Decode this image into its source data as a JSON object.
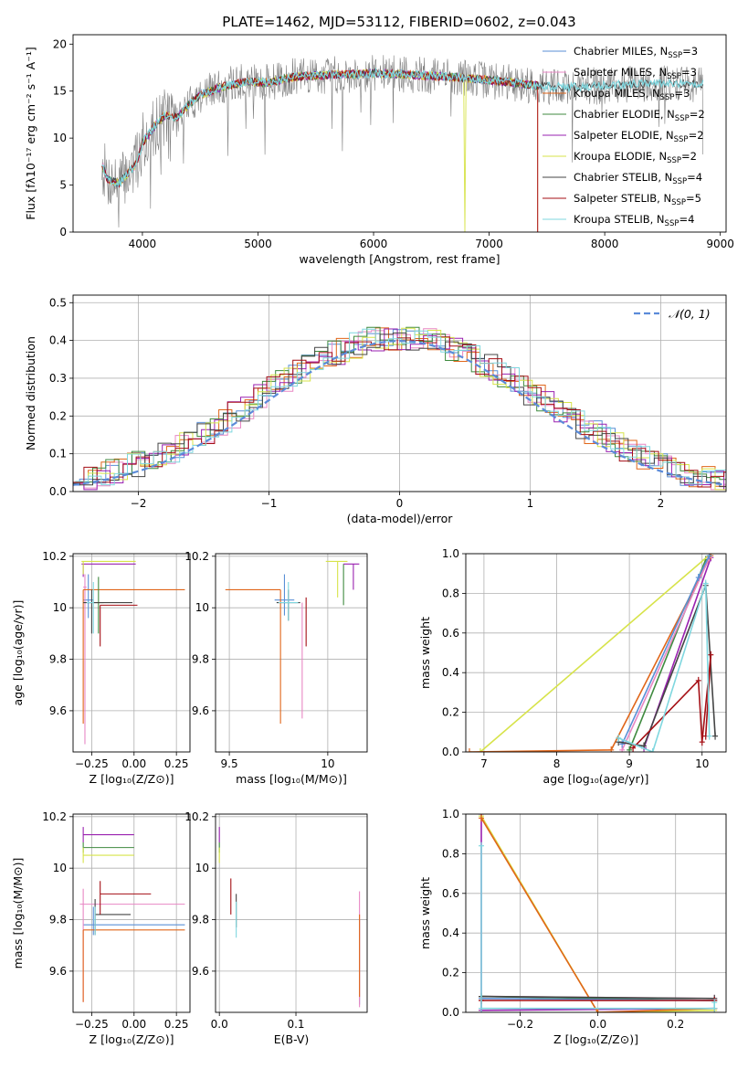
{
  "title": "PLATE=1462, MJD=53112, FIBERID=0602, z=0.043",
  "colors": {
    "chabrier_miles": "#5a8fd6",
    "salpeter_miles": "#e887c4",
    "kroupa_miles": "#e0661a",
    "chabrier_elodie": "#3f8a3f",
    "salpeter_elodie": "#9a21b0",
    "kroupa_elodie": "#d7e34a",
    "chabrier_stelib": "#444444",
    "salpeter_stelib": "#a50f15",
    "kroupa_stelib": "#7fd7df",
    "data": "#7f7f7f",
    "normal": "#5b8bd9",
    "grid": "#b0b0b0"
  },
  "legend": [
    {
      "label": "Chabrier MILES, N",
      "sub": "SSP",
      "tail": "=3",
      "key": "chabrier_miles"
    },
    {
      "label": "Salpeter MILES, N",
      "sub": "SSP",
      "tail": "=3",
      "key": "salpeter_miles"
    },
    {
      "label": "Kroupa MILES, N",
      "sub": "SSP",
      "tail": "=3",
      "key": "kroupa_miles"
    },
    {
      "label": "Chabrier ELODIE, N",
      "sub": "SSP",
      "tail": "=2",
      "key": "chabrier_elodie"
    },
    {
      "label": "Salpeter ELODIE, N",
      "sub": "SSP",
      "tail": "=2",
      "key": "salpeter_elodie"
    },
    {
      "label": "Kroupa ELODIE, N",
      "sub": "SSP",
      "tail": "=2",
      "key": "kroupa_elodie"
    },
    {
      "label": "Chabrier STELIB, N",
      "sub": "SSP",
      "tail": "=4",
      "key": "chabrier_stelib"
    },
    {
      "label": "Salpeter STELIB, N",
      "sub": "SSP",
      "tail": "=5",
      "key": "salpeter_stelib"
    },
    {
      "label": "Kroupa STELIB, N",
      "sub": "SSP",
      "tail": "=4",
      "key": "kroupa_stelib"
    }
  ],
  "chart_data": [
    {
      "id": "spectrum",
      "type": "line",
      "xlabel": "wavelength [Angstrom, rest frame]",
      "ylabel": "Flux [fλ10⁻¹⁷ erg cm⁻² s⁻¹ A⁻¹]",
      "xlim": [
        3400,
        9050
      ],
      "ylim": [
        0,
        21
      ],
      "xticks": [
        4000,
        5000,
        6000,
        7000,
        8000,
        9000
      ],
      "yticks": [
        0,
        5,
        10,
        15,
        20
      ],
      "data_range": [
        3650,
        8850
      ],
      "shape": [
        [
          3650,
          7.2
        ],
        [
          3700,
          5.6
        ],
        [
          3800,
          5.2
        ],
        [
          3900,
          6.6
        ],
        [
          3950,
          7.3
        ],
        [
          4000,
          9.5
        ],
        [
          4100,
          11.2
        ],
        [
          4200,
          12.5
        ],
        [
          4300,
          12.2
        ],
        [
          4400,
          13.5
        ],
        [
          4500,
          14.6
        ],
        [
          4700,
          15.5
        ],
        [
          4900,
          16.0
        ],
        [
          5100,
          15.9
        ],
        [
          5300,
          16.5
        ],
        [
          5600,
          16.7
        ],
        [
          6000,
          16.9
        ],
        [
          6400,
          16.7
        ],
        [
          6800,
          16.4
        ],
        [
          7200,
          15.9
        ],
        [
          7400,
          15.6
        ],
        [
          7700,
          15.4
        ],
        [
          8000,
          15.6
        ],
        [
          8400,
          15.8
        ],
        [
          8850,
          15.8
        ]
      ],
      "dips": [
        {
          "x": 6790,
          "y": 0.0
        },
        {
          "x": 7420,
          "y": 0.0
        }
      ]
    },
    {
      "id": "residuals",
      "type": "step",
      "xlabel": "(data-model)/error",
      "ylabel": "Normed distribution",
      "xlim": [
        -2.5,
        2.5
      ],
      "ylim": [
        0,
        0.52
      ],
      "xticks": [
        -2,
        -1,
        0,
        1,
        2
      ],
      "ytick_labels": [
        "0.0",
        "0.1",
        "0.2",
        "0.3",
        "0.4",
        "0.5"
      ],
      "yticks": [
        0,
        0.1,
        0.2,
        0.3,
        0.4,
        0.5
      ],
      "bin_width": 0.1,
      "normal_label": "𝒩(0, 1)"
    },
    {
      "id": "age_vs_Z",
      "type": "errorbar",
      "xlabel": "Z [log₁₀(Z/Z⊙)]",
      "ylabel": "age  [log₁₀(age/yr)]",
      "xlim": [
        -0.36,
        0.33
      ],
      "ylim": [
        9.44,
        10.21
      ],
      "xticks": [
        -0.25,
        0.0,
        0.25
      ],
      "xtick_labels": [
        "−0.25",
        "0.00",
        "0.25"
      ],
      "yticks": [
        9.6,
        9.8,
        10.0,
        10.2
      ],
      "points": [
        {
          "key": "chabrier_miles",
          "x": -0.27,
          "xerr": [
            0.03,
            0.03
          ],
          "y": 10.03,
          "yerr": [
            0.07,
            0.1
          ]
        },
        {
          "key": "salpeter_miles",
          "x": -0.29,
          "xerr": [
            0.01,
            0.01
          ],
          "y": 10.08,
          "yerr": [
            0.61,
            0.05
          ]
        },
        {
          "key": "kroupa_miles",
          "x": -0.3,
          "xerr": [
            0.0,
            0.6
          ],
          "y": 10.07,
          "yerr": [
            0.52,
            0.0
          ]
        },
        {
          "key": "chabrier_elodie",
          "x": -0.21,
          "xerr": [
            0.03,
            0.03
          ],
          "y": 10.02,
          "yerr": [
            0.12,
            0.1
          ]
        },
        {
          "key": "salpeter_elodie",
          "x": -0.3,
          "xerr": [
            0.01,
            0.31
          ],
          "y": 10.17,
          "yerr": [
            0.05,
            0.0
          ]
        },
        {
          "key": "kroupa_elodie",
          "x": -0.3,
          "xerr": [
            0.01,
            0.31
          ],
          "y": 10.18,
          "yerr": [
            0.05,
            0.0
          ]
        },
        {
          "key": "chabrier_stelib",
          "x": -0.25,
          "xerr": [
            0.05,
            0.24
          ],
          "y": 10.02,
          "yerr": [
            0.12,
            0.05
          ]
        },
        {
          "key": "salpeter_stelib",
          "x": -0.2,
          "xerr": [
            0.0,
            0.22
          ],
          "y": 10.01,
          "yerr": [
            0.16,
            0.0
          ]
        },
        {
          "key": "kroupa_stelib",
          "x": -0.24,
          "xerr": [
            0.04,
            0.0
          ],
          "y": 10.02,
          "yerr": [
            0.12,
            0.08
          ]
        }
      ]
    },
    {
      "id": "age_vs_mass",
      "type": "errorbar",
      "xlabel": "mass [log₁₀(M/M⊙)]",
      "ylabel": "",
      "xlim": [
        9.43,
        10.2
      ],
      "ylim": [
        9.44,
        10.21
      ],
      "xticks": [
        9.5,
        10.0
      ],
      "yticks": [
        9.6,
        9.8,
        10.0,
        10.2
      ],
      "points": [
        {
          "key": "chabrier_miles",
          "x": 9.78,
          "xerr": [
            0.05,
            0.05
          ],
          "y": 10.03,
          "yerr": [
            0.06,
            0.1
          ]
        },
        {
          "key": "salpeter_miles",
          "x": 9.87,
          "xerr": [
            0.0,
            0.0
          ],
          "y": 9.95,
          "yerr": [
            0.38,
            0.07
          ]
        },
        {
          "key": "kroupa_miles",
          "x": 9.76,
          "xerr": [
            0.28,
            0.0
          ],
          "y": 10.07,
          "yerr": [
            0.52,
            0.0
          ]
        },
        {
          "key": "chabrier_elodie",
          "x": 10.08,
          "xerr": [
            0.0,
            0.0
          ],
          "y": 10.13,
          "yerr": [
            0.12,
            0.04
          ]
        },
        {
          "key": "salpeter_elodie",
          "x": 10.13,
          "xerr": [
            0.05,
            0.03
          ],
          "y": 10.17,
          "yerr": [
            0.1,
            0.0
          ]
        },
        {
          "key": "kroupa_elodie",
          "x": 10.05,
          "xerr": [
            0.06,
            0.05
          ],
          "y": 10.18,
          "yerr": [
            0.14,
            0.0
          ]
        },
        {
          "key": "chabrier_stelib",
          "x": 9.8,
          "xerr": [
            0.06,
            0.06
          ],
          "y": 10.02,
          "yerr": [
            0.07,
            0.05
          ]
        },
        {
          "key": "salpeter_stelib",
          "x": 9.89,
          "xerr": [
            0.0,
            0.0
          ],
          "y": 10.0,
          "yerr": [
            0.15,
            0.04
          ]
        },
        {
          "key": "kroupa_stelib",
          "x": 9.8,
          "xerr": [
            0.05,
            0.05
          ],
          "y": 10.02,
          "yerr": [
            0.07,
            0.08
          ]
        }
      ]
    },
    {
      "id": "weight_vs_age",
      "type": "line",
      "xlabel": "age  [log₁₀(age/yr)]",
      "ylabel": "mass weight",
      "xlim": [
        6.75,
        10.33
      ],
      "ylim": [
        0,
        1
      ],
      "xticks": [
        7,
        8,
        9,
        10
      ],
      "yticks": [
        0,
        0.2,
        0.4,
        0.6,
        0.8,
        1.0
      ],
      "ytick_labels": [
        "0.0",
        "0.2",
        "0.4",
        "0.6",
        "0.8",
        "1.0"
      ],
      "series": [
        {
          "key": "salpeter_elodie",
          "x": [
            9.2,
            10.12
          ],
          "y": [
            0.02,
            0.98
          ]
        },
        {
          "key": "chabrier_elodie",
          "x": [
            9.0,
            10.05
          ],
          "y": [
            0.01,
            0.97
          ]
        },
        {
          "key": "kroupa_elodie",
          "x": [
            6.95,
            10.12
          ],
          "y": [
            0.0,
            1.0
          ]
        },
        {
          "key": "kroupa_miles",
          "x": [
            6.8,
            8.75,
            10.12
          ],
          "y": [
            0.0,
            0.01,
            0.99
          ]
        },
        {
          "key": "salpeter_miles",
          "x": [
            8.9,
            10.1
          ],
          "y": [
            0.01,
            0.98
          ]
        },
        {
          "key": "chabrier_miles",
          "x": [
            8.9,
            9.95,
            10.1
          ],
          "y": [
            0.04,
            0.88,
            0.99
          ]
        },
        {
          "key": "chabrier_stelib",
          "x": [
            8.85,
            9.2,
            10.05,
            10.18
          ],
          "y": [
            0.05,
            0.03,
            0.84,
            0.08
          ]
        },
        {
          "key": "salpeter_stelib",
          "x": [
            9.05,
            9.95,
            10.0,
            10.12,
            10.05
          ],
          "y": [
            0.02,
            0.36,
            0.05,
            0.49,
            0.08
          ]
        },
        {
          "key": "kroupa_stelib",
          "x": [
            8.85,
            9.32,
            10.05,
            10.1
          ],
          "y": [
            0.07,
            0.0,
            0.85,
            0.08
          ]
        }
      ]
    },
    {
      "id": "mass_vs_Z",
      "type": "errorbar",
      "xlabel": "Z [log₁₀(Z/Z⊙)]",
      "ylabel": "mass [log₁₀(M/M⊙)]",
      "xlim": [
        -0.36,
        0.33
      ],
      "ylim": [
        9.44,
        10.21
      ],
      "xticks": [
        -0.25,
        0.0,
        0.25
      ],
      "xtick_labels": [
        "−0.25",
        "0.00",
        "0.25"
      ],
      "yticks": [
        9.6,
        9.8,
        10.0,
        10.2
      ],
      "points": [
        {
          "key": "chabrier_miles",
          "x": -0.24,
          "xerr": [
            0.06,
            0.54
          ],
          "y": 9.78,
          "yerr": [
            0.04,
            0.07
          ]
        },
        {
          "key": "salpeter_miles",
          "x": -0.3,
          "xerr": [
            0.02,
            0.6
          ],
          "y": 9.86,
          "yerr": [
            0.38,
            0.06
          ]
        },
        {
          "key": "kroupa_miles",
          "x": -0.3,
          "xerr": [
            0.0,
            0.6
          ],
          "y": 9.76,
          "yerr": [
            0.28,
            0.0
          ]
        },
        {
          "key": "chabrier_elodie",
          "x": -0.3,
          "xerr": [
            0.0,
            0.3
          ],
          "y": 10.08,
          "yerr": [
            0.02,
            0.02
          ]
        },
        {
          "key": "salpeter_elodie",
          "x": -0.3,
          "xerr": [
            0.0,
            0.3
          ],
          "y": 10.13,
          "yerr": [
            0.03,
            0.03
          ]
        },
        {
          "key": "kroupa_elodie",
          "x": -0.3,
          "xerr": [
            0.0,
            0.3
          ],
          "y": 10.05,
          "yerr": [
            0.03,
            0.03
          ]
        },
        {
          "key": "chabrier_stelib",
          "x": -0.23,
          "xerr": [
            0.0,
            0.21
          ],
          "y": 9.82,
          "yerr": [
            0.08,
            0.06
          ]
        },
        {
          "key": "salpeter_stelib",
          "x": -0.2,
          "xerr": [
            0.0,
            0.3
          ],
          "y": 9.9,
          "yerr": [
            0.08,
            0.05
          ]
        },
        {
          "key": "kroupa_stelib",
          "x": -0.23,
          "xerr": [
            0.01,
            0.0
          ],
          "y": 9.8,
          "yerr": [
            0.06,
            0.05
          ]
        }
      ]
    },
    {
      "id": "mass_vs_ebv",
      "type": "errorbar",
      "xlabel": "E(B-V)",
      "ylabel": "",
      "xlim": [
        -0.005,
        0.193
      ],
      "ylim": [
        9.44,
        10.21
      ],
      "xticks": [
        0.0,
        0.1
      ],
      "xtick_labels": [
        "0.0",
        "0.1"
      ],
      "yticks": [
        9.6,
        9.8,
        10.0,
        10.2
      ],
      "points": [
        {
          "key": "chabrier_miles",
          "x": 0.183,
          "xerr": [
            0,
            0
          ],
          "y": 9.7,
          "yerr": [
            0.23,
            0.1
          ]
        },
        {
          "key": "salpeter_miles",
          "x": 0.183,
          "xerr": [
            0,
            0
          ],
          "y": 9.86,
          "yerr": [
            0.4,
            0.05
          ]
        },
        {
          "key": "kroupa_miles",
          "x": 0.183,
          "xerr": [
            0,
            0
          ],
          "y": 9.76,
          "yerr": [
            0.26,
            0.06
          ]
        },
        {
          "key": "chabrier_elodie",
          "x": 0.0,
          "xerr": [
            0,
            0
          ],
          "y": 10.08,
          "yerr": [
            0.02,
            0.02
          ]
        },
        {
          "key": "salpeter_elodie",
          "x": 0.0,
          "xerr": [
            0,
            0
          ],
          "y": 10.13,
          "yerr": [
            0.03,
            0.03
          ]
        },
        {
          "key": "kroupa_elodie",
          "x": 0.0,
          "xerr": [
            0,
            0
          ],
          "y": 10.05,
          "yerr": [
            0.03,
            0.03
          ]
        },
        {
          "key": "chabrier_stelib",
          "x": 0.022,
          "xerr": [
            0,
            0
          ],
          "y": 9.82,
          "yerr": [
            0.05,
            0.08
          ]
        },
        {
          "key": "salpeter_stelib",
          "x": 0.015,
          "xerr": [
            0,
            0
          ],
          "y": 9.88,
          "yerr": [
            0.06,
            0.08
          ]
        },
        {
          "key": "kroupa_stelib",
          "x": 0.022,
          "xerr": [
            0,
            0
          ],
          "y": 9.8,
          "yerr": [
            0.07,
            0.07
          ]
        }
      ]
    },
    {
      "id": "weight_vs_Z",
      "type": "line",
      "xlabel": "Z [log₁₀(Z/Z⊙)]",
      "ylabel": "mass weight",
      "xlim": [
        -0.34,
        0.33
      ],
      "ylim": [
        0,
        1
      ],
      "xticks": [
        -0.2,
        0.0,
        0.2
      ],
      "xtick_labels": [
        "−0.2",
        "0.0",
        "0.2"
      ],
      "yticks": [
        0,
        0.2,
        0.4,
        0.6,
        0.8,
        1.0
      ],
      "ytick_labels": [
        "0.0",
        "0.2",
        "0.4",
        "0.6",
        "0.8",
        "1.0"
      ],
      "series": [
        {
          "key": "salpeter_elodie",
          "x": [
            -0.3,
            -0.3,
            0.3
          ],
          "y": [
            1.0,
            0.01,
            0.02
          ]
        },
        {
          "key": "kroupa_elodie",
          "x": [
            -0.3,
            0.0,
            0.3
          ],
          "y": [
            0.99,
            0.0,
            0.01
          ]
        },
        {
          "key": "kroupa_miles",
          "x": [
            -0.3,
            0.0,
            0.3
          ],
          "y": [
            0.98,
            0.0,
            0.02
          ]
        },
        {
          "key": "salpeter_miles",
          "x": [
            -0.3,
            0.3
          ],
          "y": [
            0.08,
            0.07
          ]
        },
        {
          "key": "chabrier_elodie",
          "x": [
            -0.3,
            0.3
          ],
          "y": [
            0.08,
            0.06
          ]
        },
        {
          "key": "chabrier_miles",
          "x": [
            -0.3,
            0.3
          ],
          "y": [
            0.07,
            0.06
          ]
        },
        {
          "key": "chabrier_stelib",
          "x": [
            -0.3,
            0.3
          ],
          "y": [
            0.08,
            0.07
          ]
        },
        {
          "key": "salpeter_stelib",
          "x": [
            -0.3,
            -0.3,
            0.3
          ],
          "y": [
            0.06,
            0.06,
            0.06
          ]
        },
        {
          "key": "kroupa_stelib",
          "x": [
            -0.3,
            -0.3,
            0.3,
            0.3
          ],
          "y": [
            0.84,
            0.02,
            0.02,
            0.05
          ]
        }
      ]
    }
  ]
}
